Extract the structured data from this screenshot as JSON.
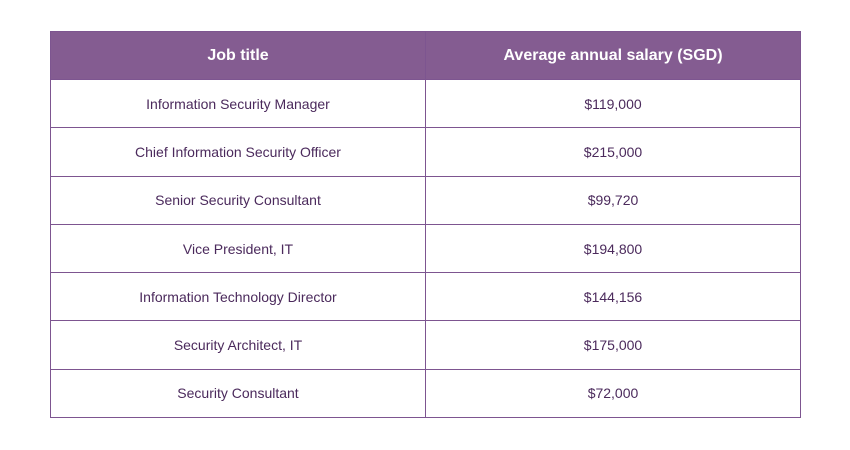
{
  "table": {
    "headers": [
      "Job title",
      "Average annual salary (SGD)"
    ],
    "rows": [
      [
        "Information Security Manager",
        "$119,000"
      ],
      [
        "Chief Information Security Officer",
        "$215,000"
      ],
      [
        "Senior Security Consultant",
        "$99,720"
      ],
      [
        "Vice President, IT",
        "$194,800"
      ],
      [
        "Information Technology Director",
        "$144,156"
      ],
      [
        "Security Architect, IT",
        "$175,000"
      ],
      [
        "Security Consultant",
        "$72,000"
      ]
    ]
  },
  "colors": {
    "header_bg": "#845c91",
    "text": "#4b2a5c",
    "border": "#7d5590"
  }
}
